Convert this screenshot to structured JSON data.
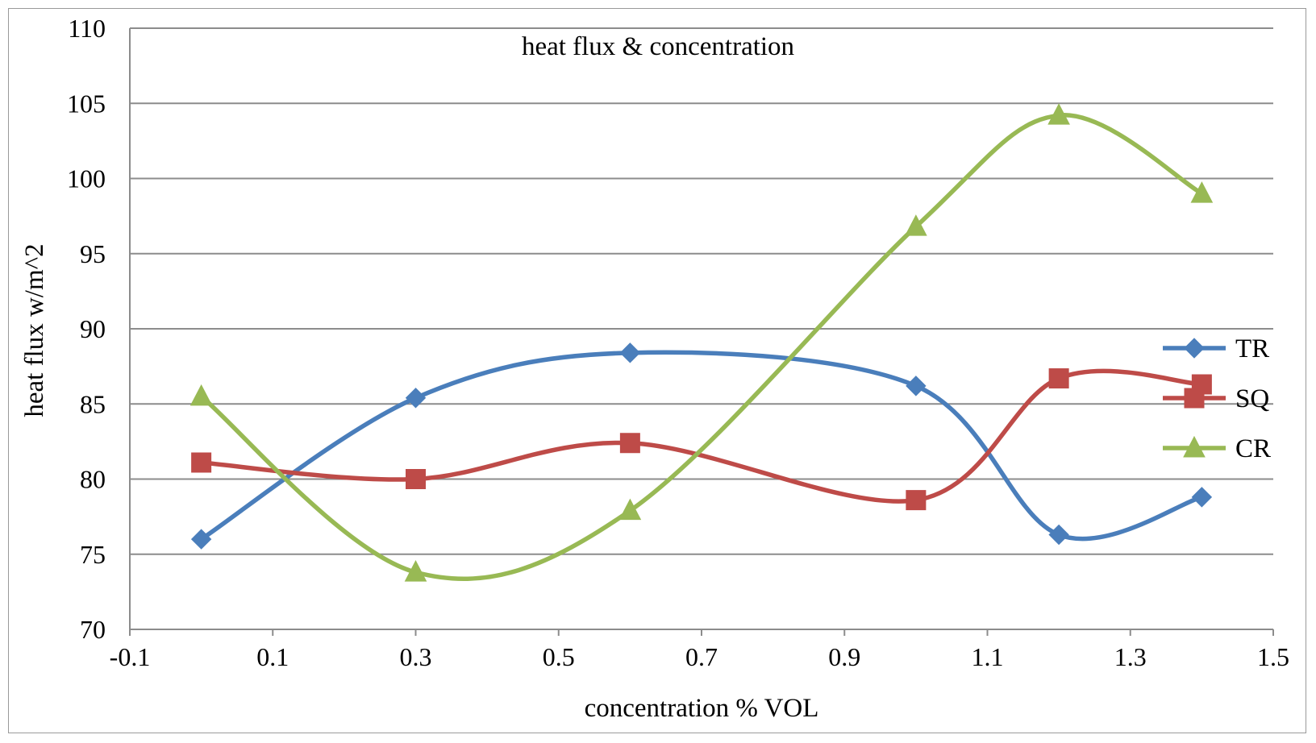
{
  "chart_data": {
    "type": "line",
    "title": "heat flux & concentration",
    "xlabel": "concentration % VOL",
    "ylabel": "heat flux w/m^2",
    "xlim": [
      -0.1,
      1.5
    ],
    "ylim": [
      70,
      110
    ],
    "x_ticks": [
      "-0.1",
      "0.1",
      "0.3",
      "0.5",
      "0.7",
      "0.9",
      "1.1",
      "1.3",
      "1.5"
    ],
    "y_ticks": [
      "70",
      "75",
      "80",
      "85",
      "90",
      "95",
      "100",
      "105",
      "110"
    ],
    "x_tick_values": [
      -0.1,
      0.1,
      0.3,
      0.5,
      0.7,
      0.9,
      1.1,
      1.3,
      1.5
    ],
    "y_tick_values": [
      70,
      75,
      80,
      85,
      90,
      95,
      100,
      105,
      110
    ],
    "grid": "horizontal",
    "smooth": true,
    "legend_position": "right",
    "x": [
      0,
      0.3,
      0.6,
      1.0,
      1.2,
      1.4
    ],
    "series": [
      {
        "name": "TR",
        "marker": "diamond",
        "color": "#4a7ebb",
        "values": [
          76.0,
          85.4,
          88.4,
          86.2,
          76.3,
          78.8
        ]
      },
      {
        "name": "SQ",
        "marker": "square",
        "color": "#be4b48",
        "values": [
          81.1,
          80.0,
          82.4,
          78.6,
          86.7,
          86.3
        ]
      },
      {
        "name": "CR",
        "marker": "triangle",
        "color": "#98b954",
        "values": [
          85.5,
          73.8,
          77.9,
          96.8,
          104.2,
          99.0
        ]
      }
    ]
  }
}
